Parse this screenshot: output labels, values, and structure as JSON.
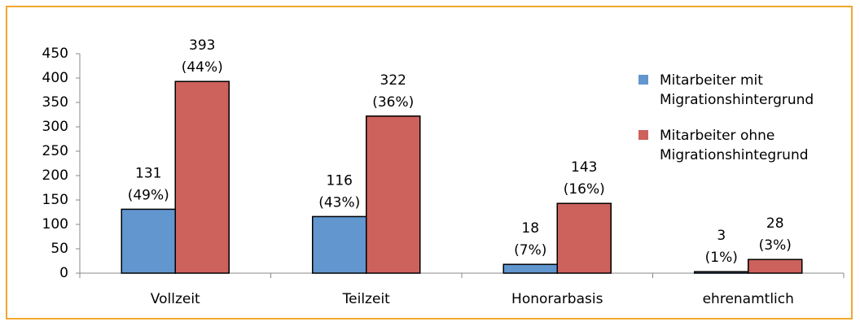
{
  "chart_data": {
    "type": "bar",
    "categories": [
      "Vollzeit",
      "Teilzeit",
      "Honorarbasis",
      "ehrenamtlich"
    ],
    "series": [
      {
        "name": "Mitarbeiter mit Migrationshintergrund",
        "color": "#6196cf",
        "values": [
          131,
          116,
          18,
          3
        ],
        "share_labels": [
          "(49%)",
          "(43%)",
          "(7%)",
          "(1%)"
        ]
      },
      {
        "name": "Mitarbeiter ohne Migrationshintegrund",
        "color": "#cd615c",
        "values": [
          393,
          322,
          143,
          28
        ],
        "share_labels": [
          "(44%)",
          "(36%)",
          "(16%)",
          "(3%)"
        ]
      }
    ],
    "ylim": [
      0,
      450
    ],
    "yticks": [
      0,
      50,
      100,
      150,
      200,
      250,
      300,
      350,
      400,
      450
    ],
    "grid": false,
    "legend": "right"
  }
}
